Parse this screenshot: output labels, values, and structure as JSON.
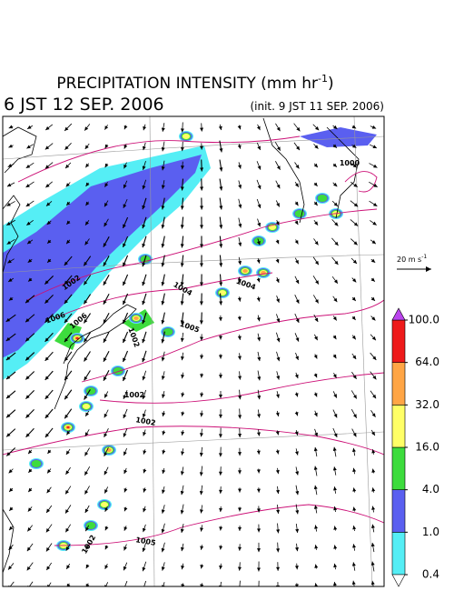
{
  "header": {
    "title": "PRECIPITATION INTENSITY (mm hr",
    "title_exponent": "-1",
    "title_close": ")",
    "valid_time": "6 JST 12 SEP. 2006",
    "init_time": "(init. 9 JST 11 SEP. 2006)"
  },
  "wind_scale": {
    "label": "20 m s",
    "exponent": "-1"
  },
  "colorbar": {
    "levels": [
      {
        "value": 0.4,
        "label": "0.4"
      },
      {
        "value": 1,
        "label": "1.0"
      },
      {
        "value": 4,
        "label": "4.0"
      },
      {
        "value": 16,
        "label": "16.0"
      },
      {
        "value": 32,
        "label": "32.0"
      },
      {
        "value": 64,
        "label": "64.0"
      },
      {
        "value": 100,
        "label": "100.0"
      }
    ],
    "colors": [
      "#55eef5",
      "#5a5ff0",
      "#3ddc3d",
      "#ffff66",
      "#ffa545",
      "#ee1a1a"
    ],
    "over_color": "#bb44ee",
    "under_color": "#ffffff"
  },
  "isobar_labels": [
    "1002",
    "1004",
    "1004",
    "1006",
    "1006",
    "1005",
    "1002",
    "1002",
    "1002",
    "1000",
    "1005",
    "1002"
  ]
}
